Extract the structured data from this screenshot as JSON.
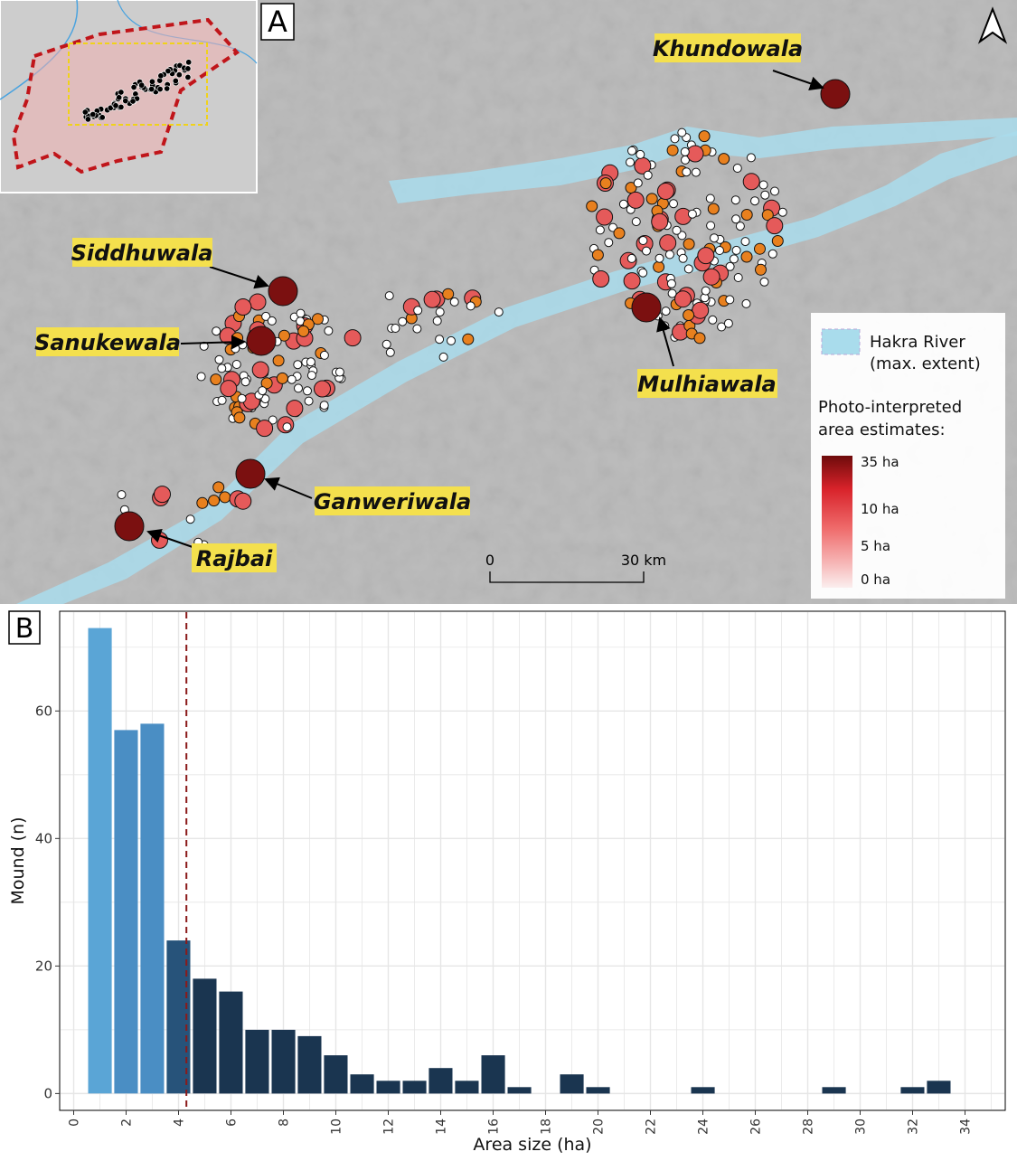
{
  "panel_a": {
    "label": "A",
    "north_arrow_icon": "north-arrow-icon",
    "sites": [
      {
        "key": "khundowala",
        "name": "Khundowala"
      },
      {
        "key": "siddhuwala",
        "name": "Siddhuwala"
      },
      {
        "key": "sanukewala",
        "name": "Sanukewala"
      },
      {
        "key": "mulhiawala",
        "name": "Mulhiawala"
      },
      {
        "key": "ganweriwala",
        "name": "Ganweriwala"
      },
      {
        "key": "rajbai",
        "name": "Rajbai"
      }
    ],
    "legend": {
      "river_label_line1": "Hakra River",
      "river_label_line2": "(max. extent)",
      "area_title_line1": "Photo-interpreted",
      "area_title_line2": "area estimates:",
      "ticks": [
        "35 ha",
        "10 ha",
        "5 ha",
        "0 ha"
      ]
    },
    "scalebar": {
      "start": "0",
      "end": "30 km"
    },
    "colors": {
      "river": "#a9dcec",
      "site_large": "#7b1010",
      "site_medium": "#e55a5a",
      "site_small": "#e8801e",
      "site_tiny": "#ffffff",
      "label_highlight": "#f4e04d",
      "inset_region": "#c0151a"
    }
  },
  "chart_data": {
    "type": "bar",
    "panel_label": "B",
    "xlabel": "Area size (ha)",
    "ylabel": "Mound (n)",
    "x": [
      1,
      2,
      3,
      4,
      5,
      6,
      7,
      8,
      9,
      10,
      11,
      12,
      13,
      14,
      15,
      16,
      17,
      19,
      20,
      24,
      29,
      32,
      33
    ],
    "values": [
      73,
      57,
      58,
      24,
      18,
      16,
      10,
      10,
      9,
      6,
      3,
      2,
      2,
      4,
      2,
      6,
      1,
      3,
      1,
      1,
      1,
      1,
      2
    ],
    "xlim": [
      -0.5,
      35.5
    ],
    "ylim": [
      -2.5,
      75.5
    ],
    "xticks": [
      0,
      2,
      4,
      6,
      8,
      10,
      12,
      14,
      16,
      18,
      20,
      22,
      24,
      26,
      28,
      30,
      32,
      34
    ],
    "yticks": [
      0,
      20,
      40,
      60
    ],
    "xtick_labels": [
      "0",
      "2",
      "4",
      "6",
      "8",
      "10",
      "12",
      "14",
      "16",
      "18",
      "20",
      "22",
      "24",
      "26",
      "28",
      "30",
      "32",
      "34"
    ],
    "ytick_labels": [
      "0",
      "20",
      "40",
      "60"
    ],
    "mean_line_x": 4.3,
    "mean_line_color": "#8b1a1a",
    "grid": true,
    "colors": {
      "bar_light": "#5aa5d6",
      "bar_mid": "#4a8ec4",
      "bar_dark": "#27537a",
      "bar_darkest": "#1a3550"
    }
  }
}
